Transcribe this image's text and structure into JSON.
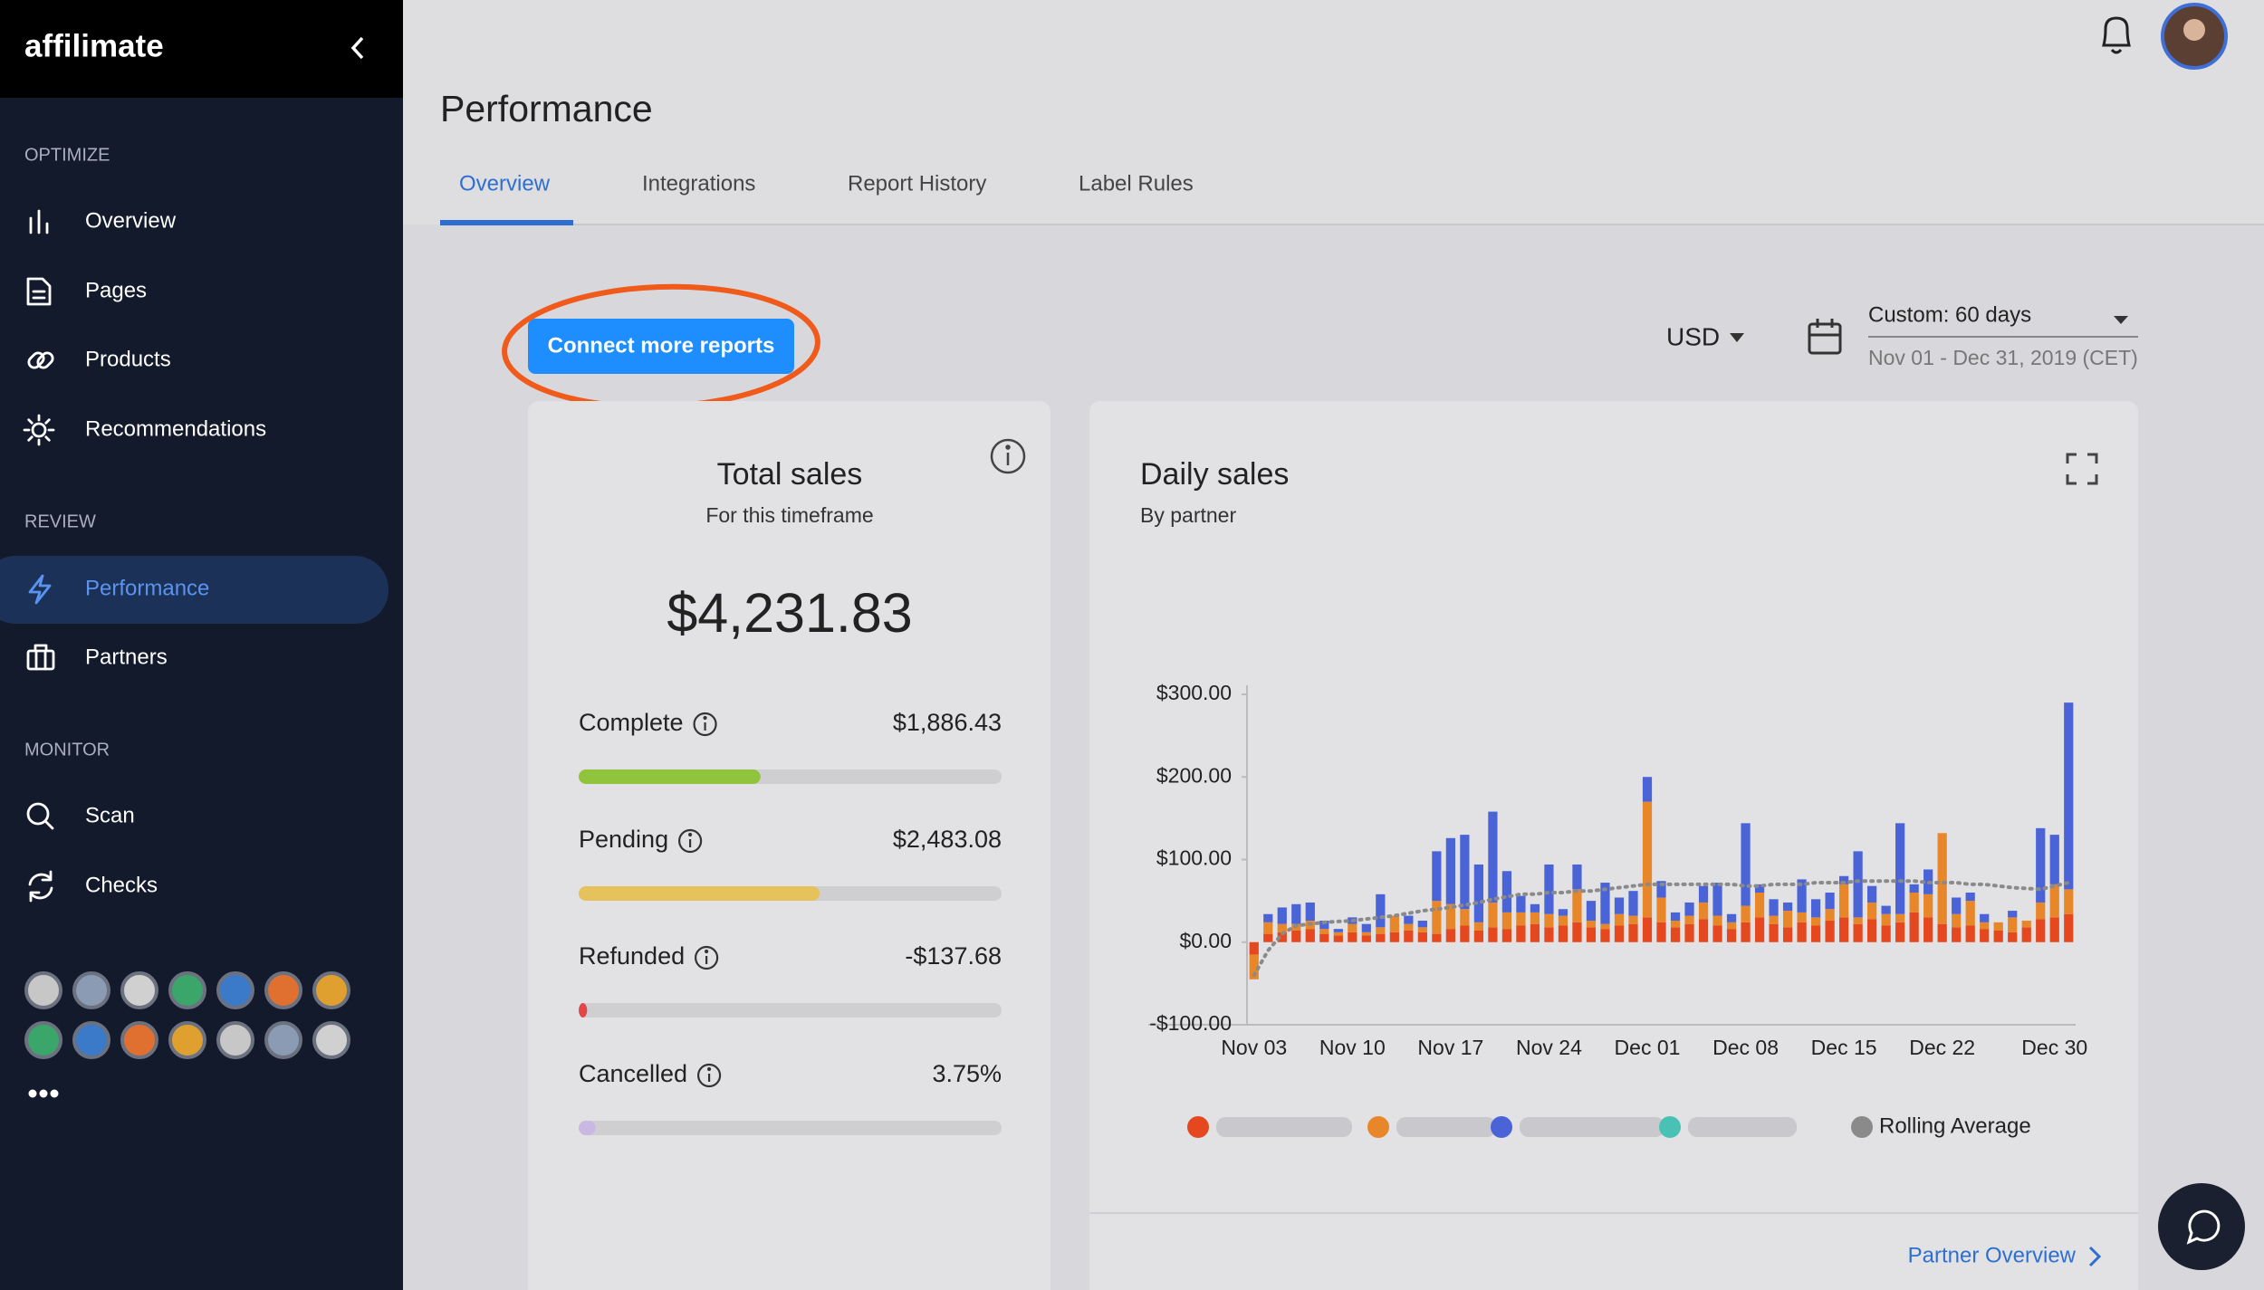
{
  "sidebar": {
    "logo": "affilimate",
    "sections": [
      {
        "title": "OPTIMIZE",
        "items": [
          {
            "label": "Overview"
          },
          {
            "label": "Pages"
          },
          {
            "label": "Products"
          },
          {
            "label": "Recommendations"
          }
        ]
      },
      {
        "title": "REVIEW",
        "items": [
          {
            "label": "Performance",
            "active": true
          },
          {
            "label": "Partners"
          }
        ]
      },
      {
        "title": "MONITOR",
        "items": [
          {
            "label": "Scan"
          },
          {
            "label": "Checks"
          }
        ]
      }
    ]
  },
  "header": {
    "title": "Performance",
    "tabs": [
      "Overview",
      "Integrations",
      "Report History",
      "Label Rules"
    ],
    "active_tab": 0
  },
  "toolbar": {
    "button": "Connect more reports",
    "currency": "USD",
    "range": "Custom: 60 days",
    "dates": "Nov 01 - Dec 31, 2019 (CET)"
  },
  "total_sales": {
    "title": "Total sales",
    "subtitle": "For this timeframe",
    "total": "$4,231.83",
    "rows": [
      {
        "label": "Complete",
        "value": "$1,886.43",
        "bar": 43,
        "color": "#8fc43c"
      },
      {
        "label": "Pending",
        "value": "$2,483.08",
        "bar": 57,
        "color": "#e6c25c"
      },
      {
        "label": "Refunded",
        "value": "-$137.68",
        "bar": 2,
        "color": "#e04848"
      },
      {
        "label": "Cancelled",
        "value": "3.75%",
        "bar": 4,
        "color": "#c9b8e2"
      }
    ]
  },
  "chart_data": {
    "type": "bar",
    "stacked": true,
    "title": "Daily sales",
    "subtitle": "By partner",
    "categories": [
      "Nov 03",
      null,
      null,
      null,
      null,
      null,
      null,
      "Nov 10",
      null,
      null,
      null,
      null,
      null,
      null,
      "Nov 17",
      null,
      null,
      null,
      null,
      null,
      null,
      "Nov 24",
      null,
      null,
      null,
      null,
      null,
      null,
      "Dec 01",
      null,
      null,
      null,
      null,
      null,
      null,
      "Dec 08",
      null,
      null,
      null,
      null,
      null,
      null,
      "Dec 15",
      null,
      null,
      null,
      null,
      null,
      null,
      "Dec 22",
      null,
      null,
      null,
      null,
      null,
      null,
      null,
      "Dec 30",
      null
    ],
    "series": [
      {
        "color": "#e5481e",
        "values": [
          -15,
          10,
          12,
          14,
          16,
          10,
          8,
          12,
          8,
          10,
          12,
          14,
          12,
          10,
          16,
          20,
          14,
          18,
          16,
          20,
          22,
          18,
          20,
          24,
          18,
          16,
          20,
          22,
          30,
          24,
          18,
          22,
          28,
          20,
          16,
          24,
          30,
          22,
          18,
          24,
          20,
          26,
          30,
          22,
          28,
          20,
          24,
          36,
          30,
          22,
          18,
          20,
          16,
          14,
          12,
          18,
          28,
          30,
          34
        ]
      },
      {
        "color": "#e8872a",
        "values": [
          -30,
          14,
          10,
          8,
          10,
          6,
          4,
          10,
          4,
          8,
          20,
          8,
          6,
          40,
          30,
          20,
          10,
          30,
          20,
          16,
          14,
          16,
          12,
          40,
          8,
          6,
          14,
          10,
          140,
          30,
          8,
          10,
          20,
          12,
          8,
          20,
          30,
          10,
          20,
          12,
          10,
          14,
          40,
          8,
          20,
          14,
          10,
          24,
          28,
          110,
          16,
          30,
          8,
          10,
          18,
          8,
          20,
          40,
          30
        ]
      },
      {
        "color": "#4a64d8",
        "values": [
          0,
          10,
          20,
          24,
          22,
          10,
          4,
          8,
          10,
          40,
          0,
          10,
          8,
          60,
          80,
          90,
          70,
          110,
          50,
          20,
          10,
          60,
          8,
          30,
          24,
          50,
          20,
          30,
          30,
          20,
          10,
          16,
          20,
          40,
          10,
          100,
          10,
          20,
          10,
          40,
          22,
          20,
          10,
          80,
          20,
          10,
          110,
          10,
          30,
          0,
          20,
          10,
          10,
          0,
          8,
          0,
          90,
          60,
          226
        ]
      },
      {
        "color": "#49c2b5",
        "values": [
          0,
          0,
          0,
          0,
          0,
          0,
          0,
          0,
          0,
          0,
          0,
          0,
          0,
          0,
          0,
          0,
          0,
          0,
          0,
          0,
          0,
          0,
          0,
          0,
          0,
          0,
          0,
          0,
          0,
          0,
          0,
          0,
          0,
          0,
          0,
          0,
          0,
          0,
          0,
          0,
          0,
          0,
          0,
          0,
          0,
          0,
          0,
          0,
          0,
          0,
          0,
          0,
          0,
          0,
          0,
          0,
          0,
          0,
          0
        ]
      }
    ],
    "line_series": {
      "name": "Rolling Average",
      "color": "#8a8a8a",
      "values": [
        -40,
        -10,
        10,
        20,
        22,
        24,
        25,
        26,
        28,
        30,
        32,
        35,
        38,
        40,
        42,
        45,
        48,
        52,
        55,
        58,
        58,
        60,
        60,
        62,
        62,
        64,
        66,
        68,
        70,
        70,
        70,
        70,
        70,
        70,
        70,
        68,
        68,
        70,
        70,
        70,
        72,
        72,
        72,
        74,
        74,
        74,
        74,
        74,
        72,
        72,
        72,
        70,
        70,
        68,
        66,
        65,
        64,
        68,
        72
      ]
    },
    "ylim": [
      -100,
      300
    ],
    "yticks": [
      {
        "value": -100,
        "label": "-$100.00"
      },
      {
        "value": 0,
        "label": "$0.00"
      },
      {
        "value": 100,
        "label": "$100.00"
      },
      {
        "value": 200,
        "label": "$200.00"
      },
      {
        "value": 300,
        "label": "$300.00"
      }
    ],
    "grid": false,
    "link": "Partner Overview"
  }
}
